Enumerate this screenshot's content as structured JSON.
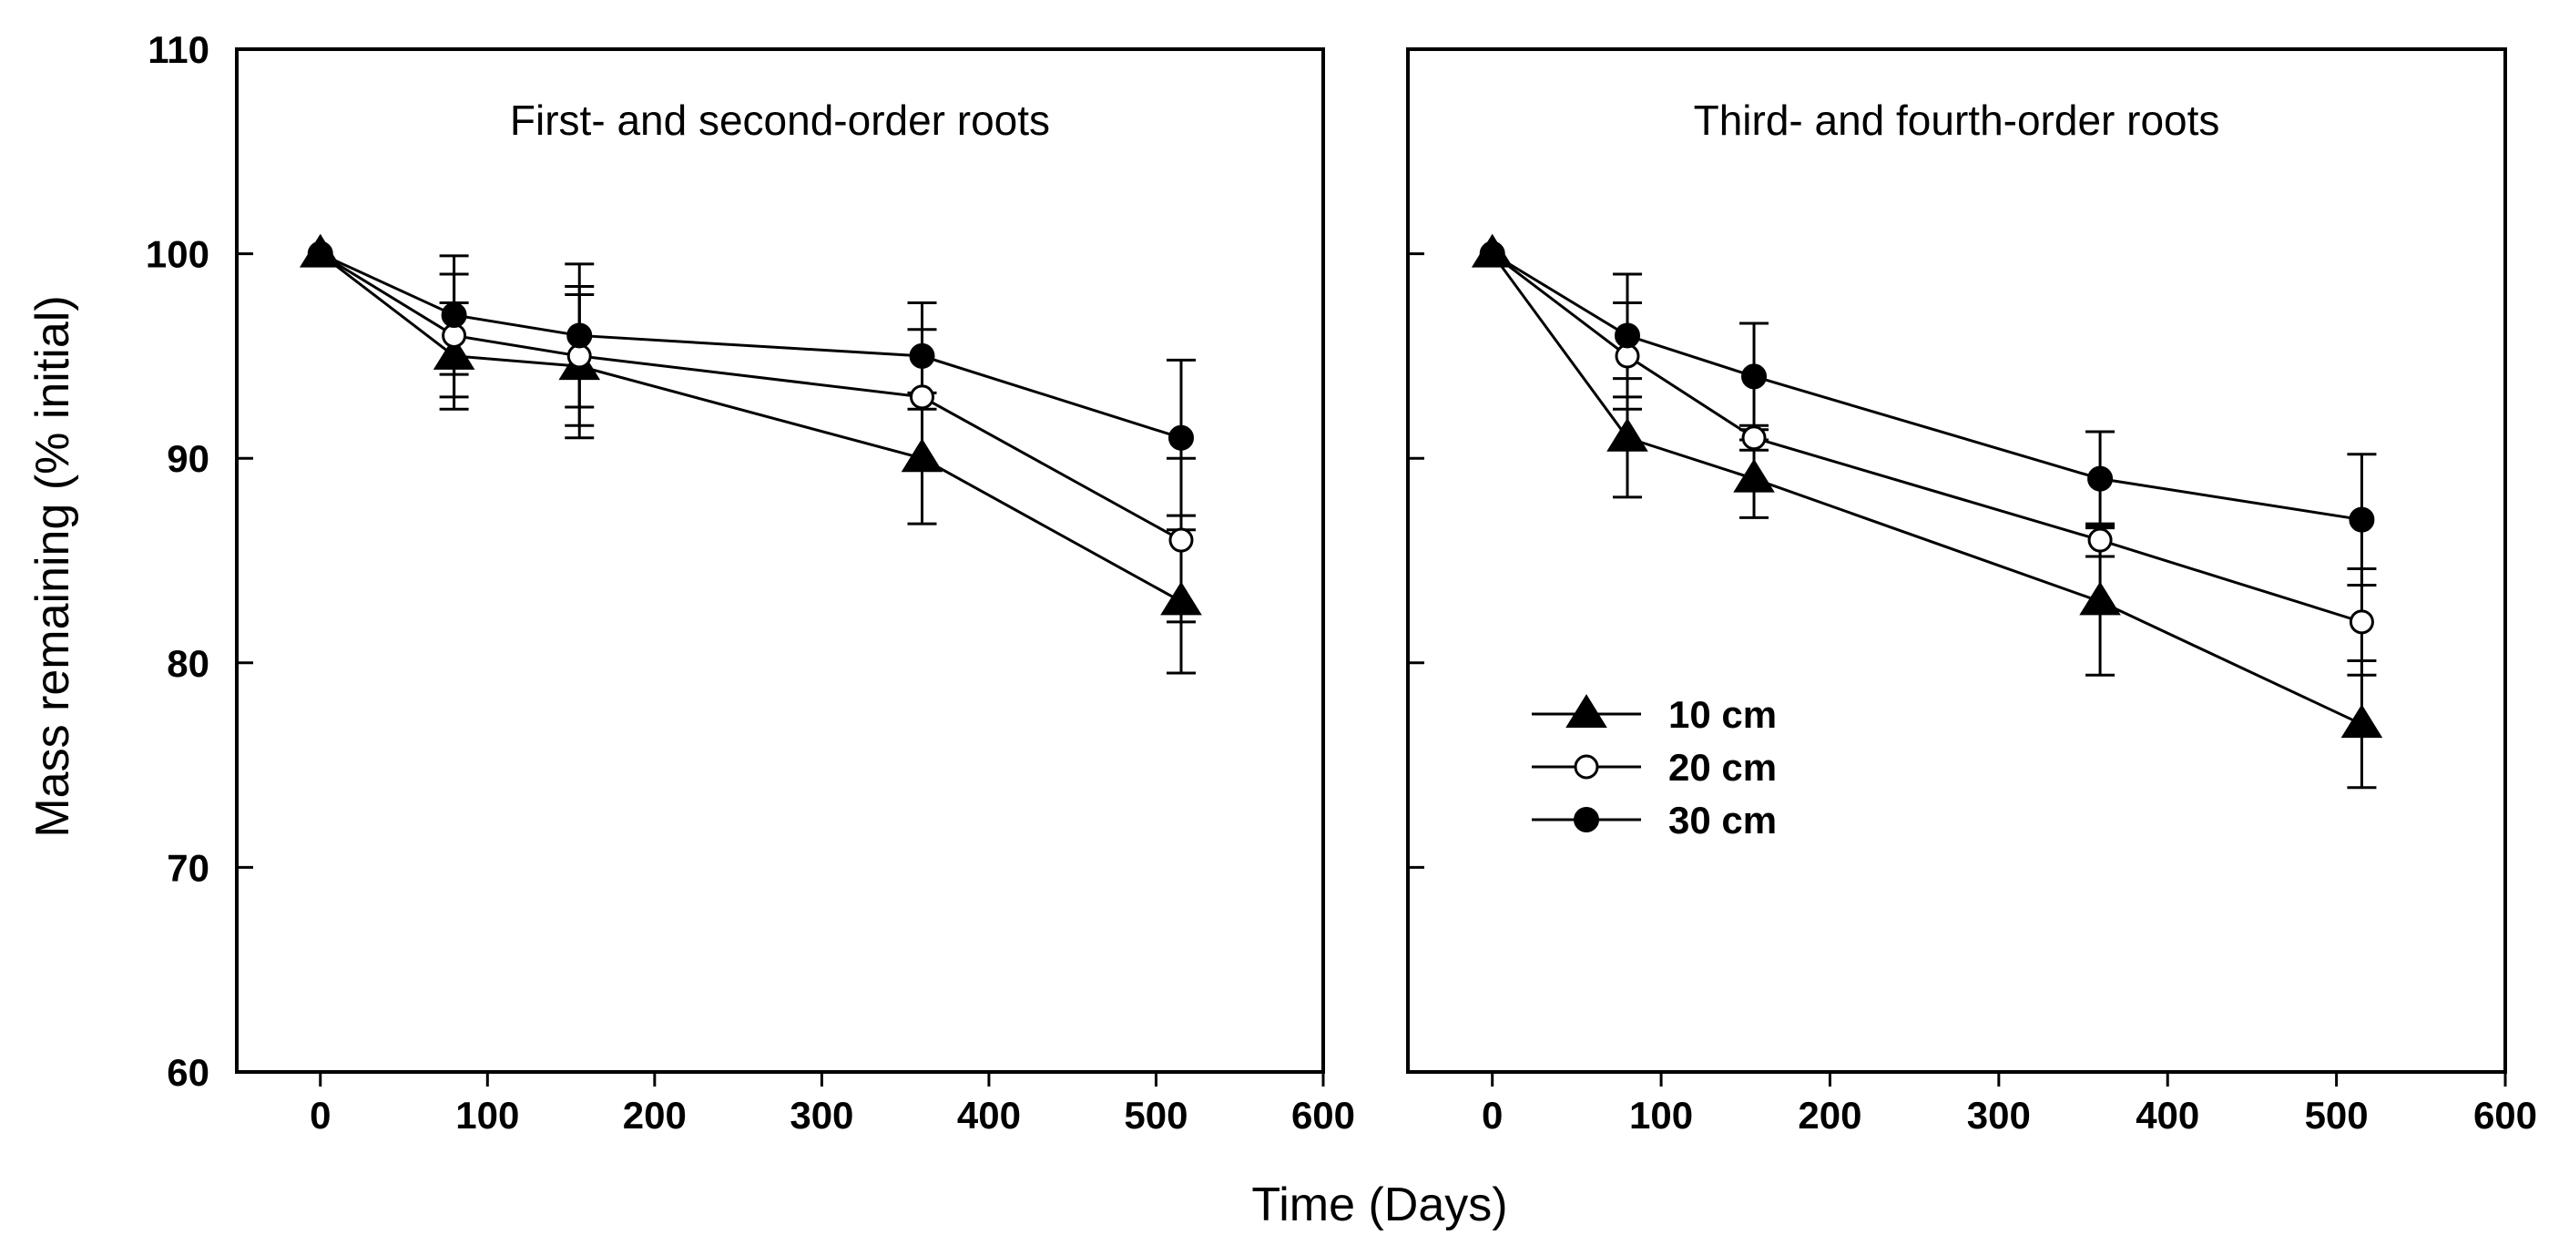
{
  "chart_data": {
    "type": "line",
    "xlabel": "Time (Days)",
    "ylabel": "Mass remaining  (% initial)",
    "xlim": [
      -50,
      600
    ],
    "ylim": [
      60,
      110
    ],
    "x_ticks": [
      "0",
      "100",
      "200",
      "300",
      "400",
      "500",
      "600"
    ],
    "y_ticks": [
      "60",
      "70",
      "80",
      "90",
      "100",
      "110"
    ],
    "legend": {
      "position": "lower-left of right panel",
      "entries": [
        {
          "label": "10 cm",
          "marker": "filled-triangle"
        },
        {
          "label": "20 cm",
          "marker": "open-circle"
        },
        {
          "label": "30 cm",
          "marker": "filled-circle"
        }
      ]
    },
    "panels": [
      {
        "title": "First- and second-order roots",
        "x": [
          0,
          80,
          155,
          360,
          515
        ],
        "series": [
          {
            "name": "10 cm",
            "values": [
              100,
              95,
              94.5,
              90,
              83
            ],
            "errors": [
              0,
              2.6,
              3.5,
              3.2,
              3.5
            ]
          },
          {
            "name": "20 cm",
            "values": [
              100,
              96,
              95,
              93,
              86
            ],
            "errors": [
              0,
              3,
              3.4,
              3.3,
              4
            ]
          },
          {
            "name": "30 cm",
            "values": [
              100,
              97,
              96,
              95,
              91
            ],
            "errors": [
              0,
              2.9,
              3.5,
              2.6,
              3.8
            ]
          }
        ]
      },
      {
        "title": "Third- and fourth-order roots",
        "x": [
          0,
          80,
          155,
          360,
          515
        ],
        "series": [
          {
            "name": "10 cm",
            "values": [
              100,
              91,
              89,
              83,
              77
            ],
            "errors": [
              0,
              2.9,
              1.9,
              3.6,
              3.1
            ]
          },
          {
            "name": "20 cm",
            "values": [
              100,
              95,
              91,
              86,
              82
            ],
            "errors": [
              0,
              2.6,
              0.6,
              0.8,
              2.6
            ]
          },
          {
            "name": "30 cm",
            "values": [
              100,
              96,
              94,
              89,
              87
            ],
            "errors": [
              0,
              3,
              2.6,
              2.3,
              3.2
            ]
          }
        ]
      }
    ]
  }
}
